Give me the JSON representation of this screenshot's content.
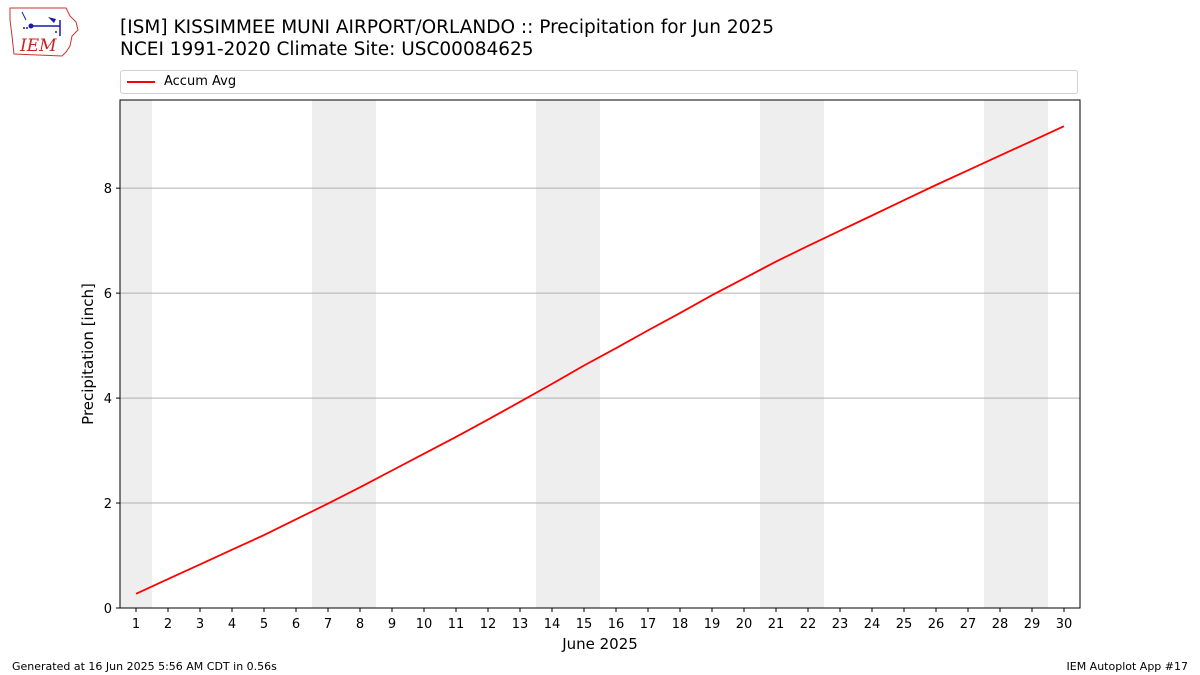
{
  "header": {
    "logo_text": "IEM",
    "title": "[ISM] KISSIMMEE MUNI AIRPORT/ORLANDO :: Precipitation for Jun 2025",
    "subtitle": "NCEI 1991-2020 Climate Site: USC00084625"
  },
  "legend": {
    "label": "Accum Avg",
    "color": "#ff0000"
  },
  "footer": {
    "generated": "Generated at 16 Jun 2025 5:56 AM CDT in 0.56s",
    "app": "IEM Autoplot App #17"
  },
  "chart_data": {
    "type": "line",
    "xlabel": "June 2025",
    "ylabel": "Precipitation [inch]",
    "x": [
      1,
      2,
      3,
      4,
      5,
      6,
      7,
      8,
      9,
      10,
      11,
      12,
      13,
      14,
      15,
      16,
      17,
      18,
      19,
      20,
      21,
      22,
      23,
      24,
      25,
      26,
      27,
      28,
      29,
      30
    ],
    "xlim": [
      0.5,
      30.5
    ],
    "ylim": [
      0,
      9.68
    ],
    "yticks": [
      0,
      2,
      4,
      6,
      8
    ],
    "grid": "y",
    "legend_position": "top",
    "weekend_bands": [
      [
        0.5,
        1.5
      ],
      [
        6.5,
        8.5
      ],
      [
        13.5,
        15.5
      ],
      [
        20.5,
        22.5
      ],
      [
        27.5,
        29.5
      ]
    ],
    "weekend_color": "#eeeeee",
    "series": [
      {
        "name": "Accum Avg",
        "color": "#ff0000",
        "values": [
          0.27,
          0.55,
          0.83,
          1.11,
          1.39,
          1.69,
          1.99,
          2.3,
          2.62,
          2.94,
          3.26,
          3.59,
          3.93,
          4.27,
          4.62,
          4.95,
          5.29,
          5.62,
          5.96,
          6.28,
          6.6,
          6.9,
          7.19,
          7.48,
          7.77,
          8.06,
          8.34,
          8.62,
          8.9,
          9.18
        ]
      }
    ]
  }
}
